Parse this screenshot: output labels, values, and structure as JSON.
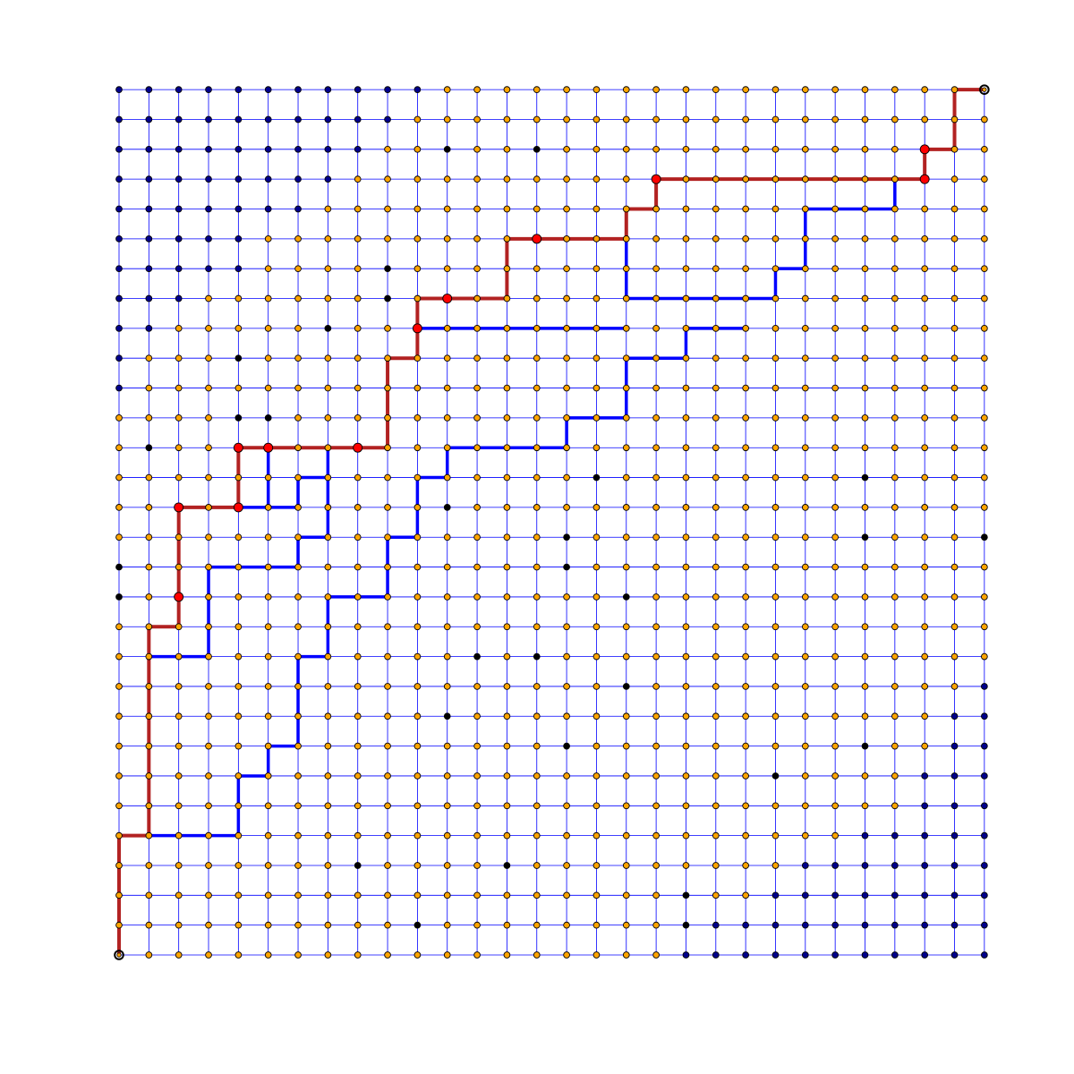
{
  "diagram": {
    "type": "lattice-path-graph",
    "grid": {
      "columns": 30,
      "rows": 30
    },
    "colors": {
      "background": "#ffffff",
      "grid_line": "#0000ff",
      "node_default": "#ffa500",
      "node_blue": "#00008b",
      "node_black": "#000000",
      "node_red": "#ff0000",
      "red_path": "#b22222",
      "blue_path": "#0000ff",
      "node_stroke": "#000000"
    },
    "red_path": [
      [
        0,
        0
      ],
      [
        0,
        4
      ],
      [
        1,
        4
      ],
      [
        1,
        11
      ],
      [
        2,
        11
      ],
      [
        2,
        15
      ],
      [
        4,
        15
      ],
      [
        4,
        17
      ],
      [
        9,
        17
      ],
      [
        9,
        20
      ],
      [
        10,
        20
      ],
      [
        10,
        22
      ],
      [
        13,
        22
      ],
      [
        13,
        24
      ],
      [
        17,
        24
      ],
      [
        17,
        25
      ],
      [
        18,
        25
      ],
      [
        18,
        26
      ],
      [
        27,
        26
      ],
      [
        27,
        27
      ],
      [
        28,
        27
      ],
      [
        28,
        29
      ],
      [
        29,
        29
      ]
    ],
    "red_nodes": [
      [
        2,
        12
      ],
      [
        2,
        15
      ],
      [
        4,
        15
      ],
      [
        4,
        17
      ],
      [
        5,
        17
      ],
      [
        8,
        17
      ],
      [
        10,
        21
      ],
      [
        11,
        22
      ],
      [
        14,
        24
      ],
      [
        18,
        26
      ],
      [
        27,
        26
      ],
      [
        27,
        27
      ]
    ],
    "blue_paths": [
      [
        [
          1,
          4
        ],
        [
          4,
          4
        ],
        [
          4,
          6
        ],
        [
          5,
          6
        ],
        [
          5,
          7
        ],
        [
          6,
          7
        ],
        [
          6,
          10
        ],
        [
          7,
          10
        ],
        [
          7,
          12
        ],
        [
          9,
          12
        ],
        [
          9,
          14
        ],
        [
          10,
          14
        ],
        [
          10,
          16
        ],
        [
          11,
          16
        ],
        [
          11,
          17
        ],
        [
          15,
          17
        ],
        [
          15,
          18
        ],
        [
          17,
          18
        ],
        [
          17,
          19
        ]
      ],
      [
        [
          1,
          10
        ],
        [
          3,
          10
        ],
        [
          3,
          13
        ],
        [
          6,
          13
        ],
        [
          6,
          14
        ],
        [
          7,
          14
        ],
        [
          7,
          17
        ],
        [
          9,
          17
        ]
      ],
      [
        [
          4,
          15
        ],
        [
          6,
          15
        ],
        [
          6,
          16
        ],
        [
          7,
          16
        ]
      ],
      [
        [
          5,
          17
        ],
        [
          5,
          15
        ]
      ],
      [
        [
          17,
          19
        ],
        [
          17,
          20
        ],
        [
          19,
          20
        ],
        [
          19,
          21
        ],
        [
          21,
          21
        ]
      ],
      [
        [
          17,
          24
        ],
        [
          17,
          22
        ],
        [
          22,
          22
        ],
        [
          22,
          23
        ],
        [
          23,
          23
        ],
        [
          23,
          25
        ],
        [
          26,
          25
        ],
        [
          26,
          26
        ]
      ],
      [
        [
          10,
          21
        ],
        [
          17,
          21
        ]
      ]
    ],
    "blue_regions": {
      "top_left_counts": [
        11,
        10,
        9,
        8,
        7,
        5,
        5,
        3,
        2,
        1,
        1
      ],
      "bottom_right_counts": [
        11,
        10,
        8,
        7,
        5,
        3,
        3,
        2,
        2,
        1
      ]
    },
    "black_nodes": [
      [
        11,
        27
      ],
      [
        14,
        27
      ],
      [
        9,
        23
      ],
      [
        9,
        22
      ],
      [
        7,
        21
      ],
      [
        4,
        20
      ],
      [
        4,
        18
      ],
      [
        5,
        18
      ],
      [
        1,
        17
      ],
      [
        16,
        16
      ],
      [
        25,
        16
      ],
      [
        10,
        15
      ],
      [
        11,
        15
      ],
      [
        15,
        14
      ],
      [
        25,
        14
      ],
      [
        29,
        14
      ],
      [
        0,
        13
      ],
      [
        15,
        13
      ],
      [
        0,
        12
      ],
      [
        17,
        12
      ],
      [
        12,
        10
      ],
      [
        14,
        10
      ],
      [
        17,
        9
      ],
      [
        6,
        9
      ],
      [
        11,
        8
      ],
      [
        6,
        7
      ],
      [
        5,
        7
      ],
      [
        15,
        7
      ],
      [
        25,
        7
      ],
      [
        22,
        6
      ],
      [
        8,
        3
      ],
      [
        13,
        3
      ],
      [
        19,
        2
      ],
      [
        10,
        1
      ],
      [
        19,
        1
      ]
    ]
  }
}
